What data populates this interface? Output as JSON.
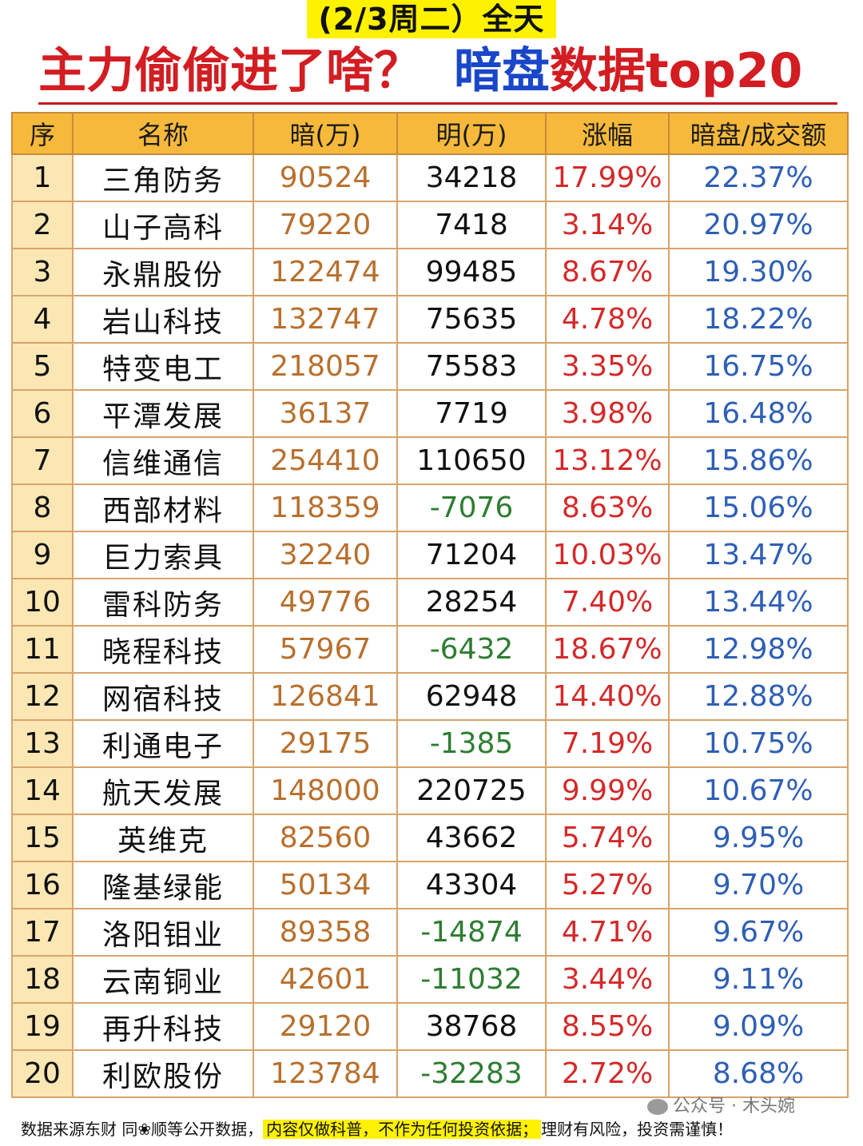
{
  "date_label": "(2/3周二）全天",
  "headline": {
    "part1": "主力偷偷进了啥？",
    "part2": "暗盘",
    "part3": "数据top20"
  },
  "table": {
    "headers": [
      "序",
      "名称",
      "暗(万)",
      "明(万)",
      "涨幅",
      "暗盘/成交额"
    ],
    "rows": [
      {
        "idx": "1",
        "name": "三角防务",
        "dark": "90524",
        "ming": "34218",
        "rise": "17.99%",
        "ratio": "22.37%"
      },
      {
        "idx": "2",
        "name": "山子高科",
        "dark": "79220",
        "ming": "7418",
        "rise": "3.14%",
        "ratio": "20.97%"
      },
      {
        "idx": "3",
        "name": "永鼎股份",
        "dark": "122474",
        "ming": "99485",
        "rise": "8.67%",
        "ratio": "19.30%"
      },
      {
        "idx": "4",
        "name": "岩山科技",
        "dark": "132747",
        "ming": "75635",
        "rise": "4.78%",
        "ratio": "18.22%"
      },
      {
        "idx": "5",
        "name": "特变电工",
        "dark": "218057",
        "ming": "75583",
        "rise": "3.35%",
        "ratio": "16.75%"
      },
      {
        "idx": "6",
        "name": "平潭发展",
        "dark": "36137",
        "ming": "7719",
        "rise": "3.98%",
        "ratio": "16.48%"
      },
      {
        "idx": "7",
        "name": "信维通信",
        "dark": "254410",
        "ming": "110650",
        "rise": "13.12%",
        "ratio": "15.86%"
      },
      {
        "idx": "8",
        "name": "西部材料",
        "dark": "118359",
        "ming": "-7076",
        "rise": "8.63%",
        "ratio": "15.06%"
      },
      {
        "idx": "9",
        "name": "巨力索具",
        "dark": "32240",
        "ming": "71204",
        "rise": "10.03%",
        "ratio": "13.47%"
      },
      {
        "idx": "10",
        "name": "雷科防务",
        "dark": "49776",
        "ming": "28254",
        "rise": "7.40%",
        "ratio": "13.44%"
      },
      {
        "idx": "11",
        "name": "晓程科技",
        "dark": "57967",
        "ming": "-6432",
        "rise": "18.67%",
        "ratio": "12.98%"
      },
      {
        "idx": "12",
        "name": "网宿科技",
        "dark": "126841",
        "ming": "62948",
        "rise": "14.40%",
        "ratio": "12.88%"
      },
      {
        "idx": "13",
        "name": "利通电子",
        "dark": "29175",
        "ming": "-1385",
        "rise": "7.19%",
        "ratio": "10.75%"
      },
      {
        "idx": "14",
        "name": "航天发展",
        "dark": "148000",
        "ming": "220725",
        "rise": "9.99%",
        "ratio": "10.67%"
      },
      {
        "idx": "15",
        "name": "英维克",
        "dark": "82560",
        "ming": "43662",
        "rise": "5.74%",
        "ratio": "9.95%"
      },
      {
        "idx": "16",
        "name": "隆基绿能",
        "dark": "50134",
        "ming": "43304",
        "rise": "5.27%",
        "ratio": "9.70%"
      },
      {
        "idx": "17",
        "name": "洛阳钼业",
        "dark": "89358",
        "ming": "-14874",
        "rise": "4.71%",
        "ratio": "9.67%"
      },
      {
        "idx": "18",
        "name": "云南铜业",
        "dark": "42601",
        "ming": "-11032",
        "rise": "3.44%",
        "ratio": "9.11%"
      },
      {
        "idx": "19",
        "name": "再升科技",
        "dark": "29120",
        "ming": "38768",
        "rise": "8.55%",
        "ratio": "9.09%"
      },
      {
        "idx": "20",
        "name": "利欧股份",
        "dark": "123784",
        "ming": "-32283",
        "rise": "2.72%",
        "ratio": "8.68%"
      }
    ]
  },
  "footer": {
    "part1": "数据来源东财 同❀顺等公开数据，",
    "highlight": "内容仅做科普，不作为任何投资依据；",
    "part2": "理财有风险，投资需谨慎！"
  },
  "watermark": "公众号 · 木头婉",
  "colors": {
    "dark_value": "#b8702e",
    "negative": "#2e7d32",
    "rise": "#d32a2a",
    "ratio": "#2f5fb5",
    "header_bg": "#f6b93b",
    "highlight": "#fff200"
  }
}
